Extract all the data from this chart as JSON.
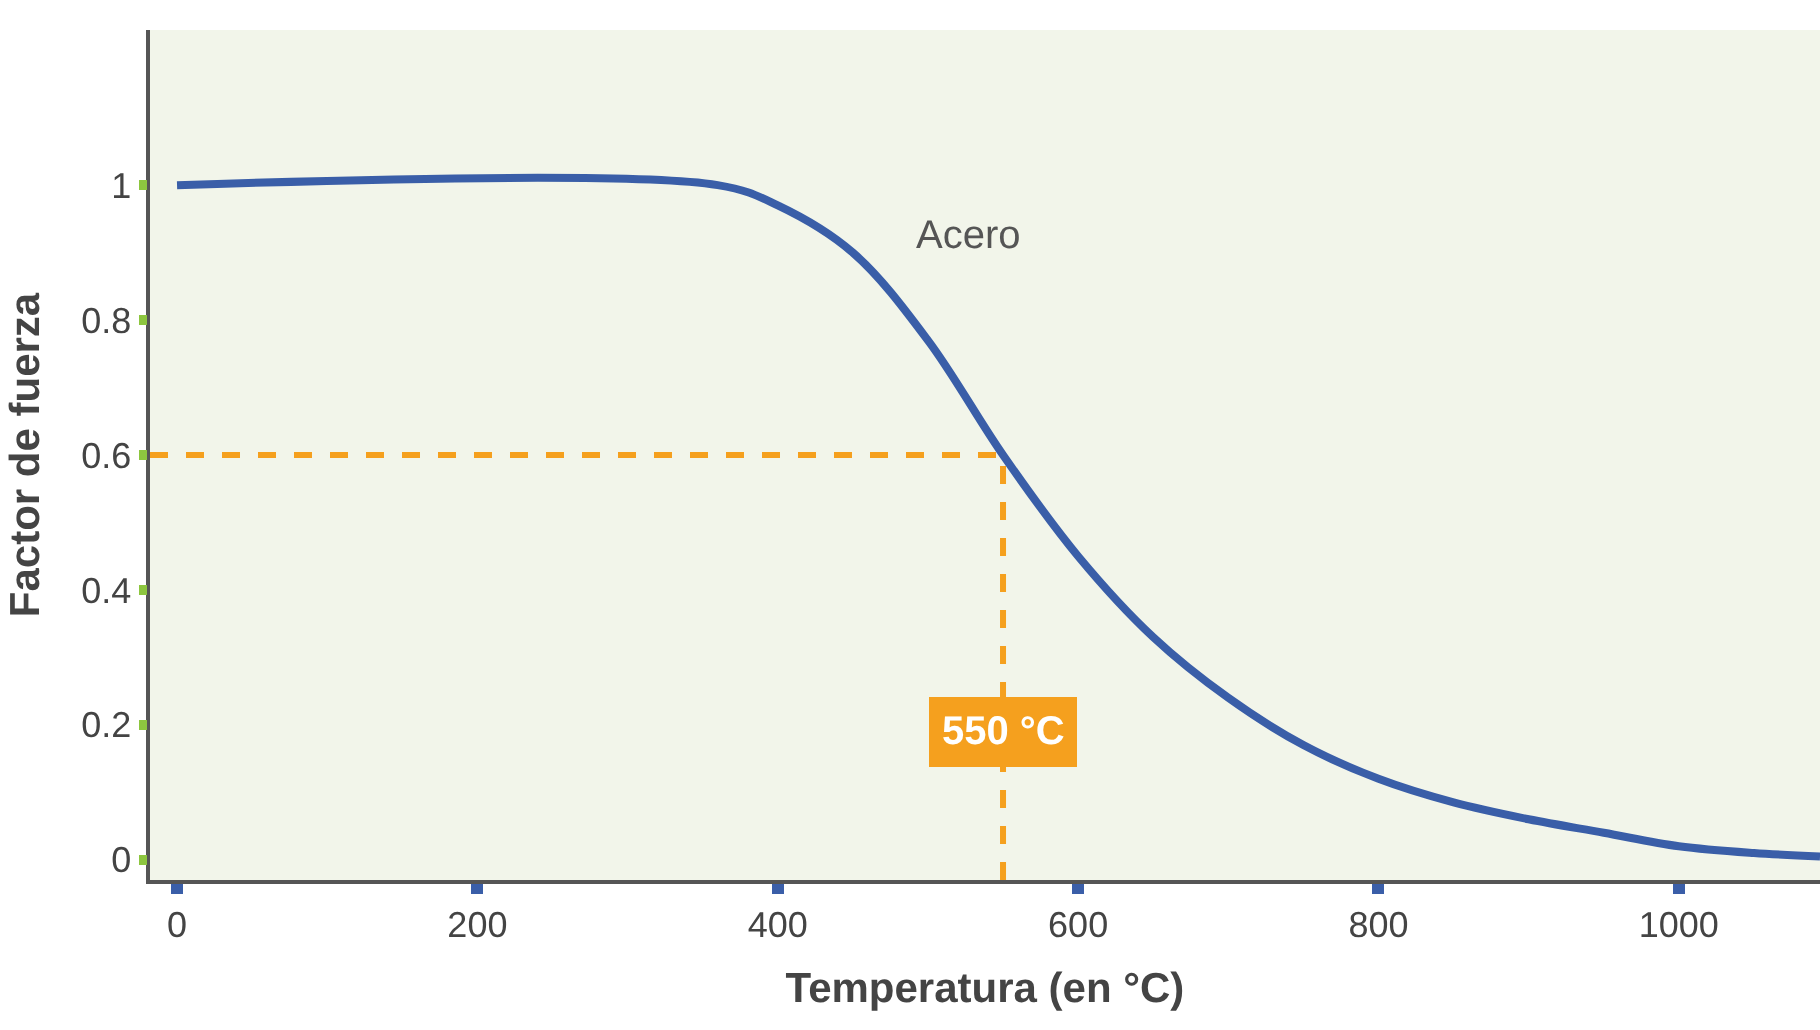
{
  "chart_data": {
    "type": "line",
    "xlabel": "Temperatura (en °C)",
    "ylabel": "Factor de fuerza",
    "x": [
      0,
      360,
      400,
      450,
      500,
      550,
      600,
      650,
      700,
      750,
      800,
      850,
      900,
      950,
      1000,
      1050,
      1094
    ],
    "series": [
      {
        "name": "Acero",
        "color": "#3a5ea8",
        "values": [
          1,
          1,
          0.97,
          0.9,
          0.77,
          0.6,
          0.45,
          0.33,
          0.24,
          0.17,
          0.12,
          0.085,
          0.06,
          0.04,
          0.02,
          0.01,
          0.005
        ]
      }
    ],
    "xlim": [
      -18,
      1094
    ],
    "xticks": [
      0,
      200,
      400,
      600,
      800,
      1000
    ],
    "ylim": [
      -0.03,
      1.23
    ],
    "yticks": [
      0,
      0.2,
      0.4,
      0.6,
      0.8,
      1
    ],
    "ref_lines": [
      {
        "axis": "x",
        "value": 550,
        "label": "550 °C",
        "color": "#f5a01e",
        "line_style": "dashed"
      },
      {
        "axis": "y",
        "value": 0.6,
        "color": "#f5a01e",
        "line_style": "dashed"
      }
    ],
    "grid": false,
    "legend": false,
    "marker": "none",
    "line_style": "solid"
  }
}
